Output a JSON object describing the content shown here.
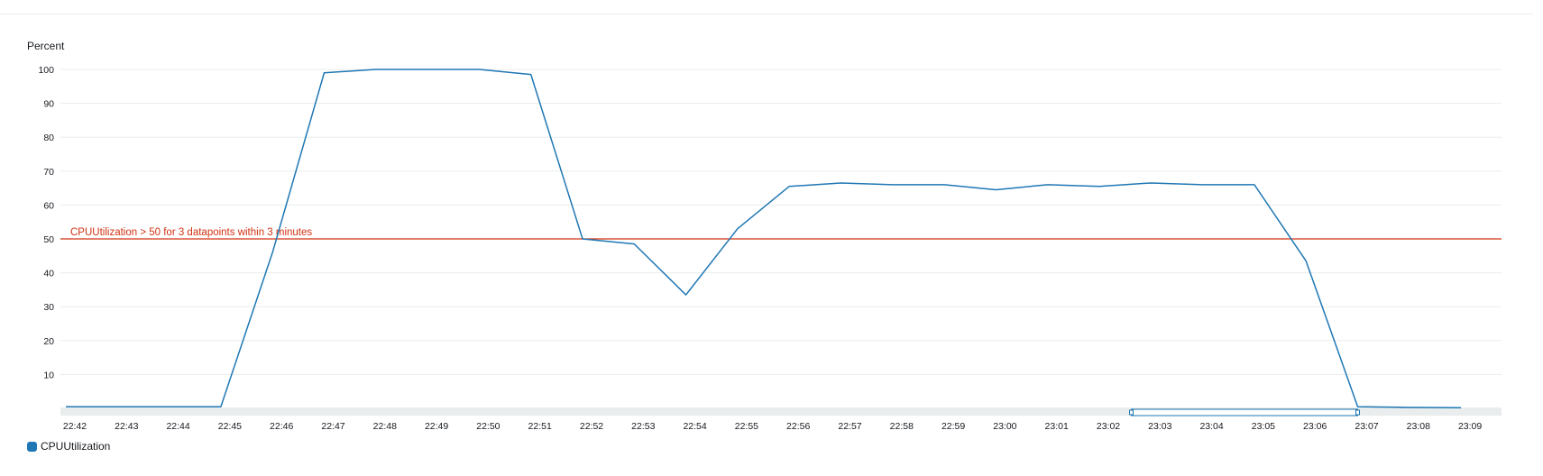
{
  "chart_data": {
    "type": "line",
    "ylabel": "Percent",
    "ylim": [
      0,
      100
    ],
    "yticks": [
      10,
      20,
      30,
      40,
      50,
      60,
      70,
      80,
      90,
      100
    ],
    "grid": true,
    "legend_position": "bottom-left",
    "x": [
      "22:42",
      "22:43",
      "22:44",
      "22:45",
      "22:46",
      "22:47",
      "22:48",
      "22:49",
      "22:50",
      "22:51",
      "22:52",
      "22:53",
      "22:54",
      "22:55",
      "22:56",
      "22:57",
      "22:58",
      "22:59",
      "23:00",
      "23:01",
      "23:02",
      "23:03",
      "23:04",
      "23:05",
      "23:06",
      "23:07",
      "23:08",
      "23:09"
    ],
    "series": [
      {
        "name": "CPUUtilization",
        "color": "#1f77b4",
        "values": [
          0.5,
          0.5,
          0.5,
          0.5,
          46,
          99,
          100,
          100,
          100,
          98.5,
          50,
          48.5,
          33.5,
          53,
          65.5,
          66.5,
          66,
          66,
          64.5,
          66,
          65.5,
          66.5,
          66,
          66,
          43.5,
          0.5,
          0.3,
          0.2
        ]
      }
    ],
    "threshold": {
      "value": 50,
      "label": "CPUUtilization > 50 for 3 datapoints within 3 minutes",
      "color": "#d13212"
    },
    "time_range_selection": {
      "from": "23:02",
      "to": "23:07"
    }
  }
}
